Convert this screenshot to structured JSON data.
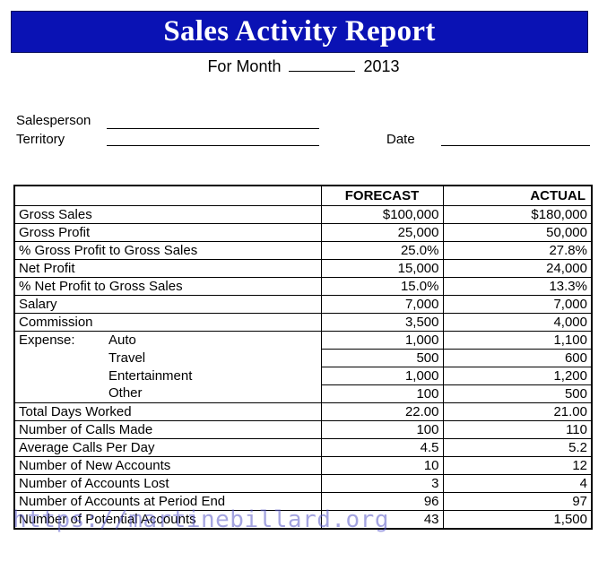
{
  "header": {
    "title": "Sales Activity Report",
    "for_month_prefix": "For Month",
    "year": "2013"
  },
  "fields": {
    "salesperson_label": "Salesperson",
    "territory_label": "Territory",
    "date_label": "Date"
  },
  "table": {
    "columns": [
      "",
      "FORECAST",
      "ACTUAL"
    ],
    "rows": [
      {
        "label": "Gross Sales",
        "forecast": "$100,000",
        "actual": "$180,000"
      },
      {
        "label": "Gross Profit",
        "forecast": "25,000",
        "actual": "50,000"
      },
      {
        "label": "% Gross Profit to Gross Sales",
        "forecast": "25.0%",
        "actual": "27.8%"
      },
      {
        "label": "Net Profit",
        "forecast": "15,000",
        "actual": "24,000"
      },
      {
        "label": "% Net Profit to Gross Sales",
        "forecast": "15.0%",
        "actual": "13.3%"
      },
      {
        "label": "Salary",
        "forecast": "7,000",
        "actual": "7,000"
      },
      {
        "label": "Commission",
        "forecast": "3,500",
        "actual": "4,000"
      },
      {
        "label": "Expense:",
        "sub": "Auto",
        "forecast": "1,000",
        "actual": "1,100"
      },
      {
        "label": "",
        "sub": "Travel",
        "forecast": "500",
        "actual": "600"
      },
      {
        "label": "",
        "sub": "Entertainment",
        "forecast": "1,000",
        "actual": "1,200"
      },
      {
        "label": "",
        "sub": "Other",
        "forecast": "100",
        "actual": "500"
      },
      {
        "label": "Total Days Worked",
        "forecast": "22.00",
        "actual": "21.00"
      },
      {
        "label": "Number of Calls Made",
        "forecast": "100",
        "actual": "110"
      },
      {
        "label": "Average Calls Per Day",
        "forecast": "4.5",
        "actual": "5.2"
      },
      {
        "label": "Number of New Accounts",
        "forecast": "10",
        "actual": "12"
      },
      {
        "label": "Number of Accounts Lost",
        "forecast": "3",
        "actual": "4"
      },
      {
        "label": "Number of Accounts at Period End",
        "forecast": "96",
        "actual": "97"
      },
      {
        "label": "Number of Potential Accounts",
        "forecast": "43",
        "actual": "1,500"
      }
    ]
  },
  "watermark": "https://martinebillard.org"
}
